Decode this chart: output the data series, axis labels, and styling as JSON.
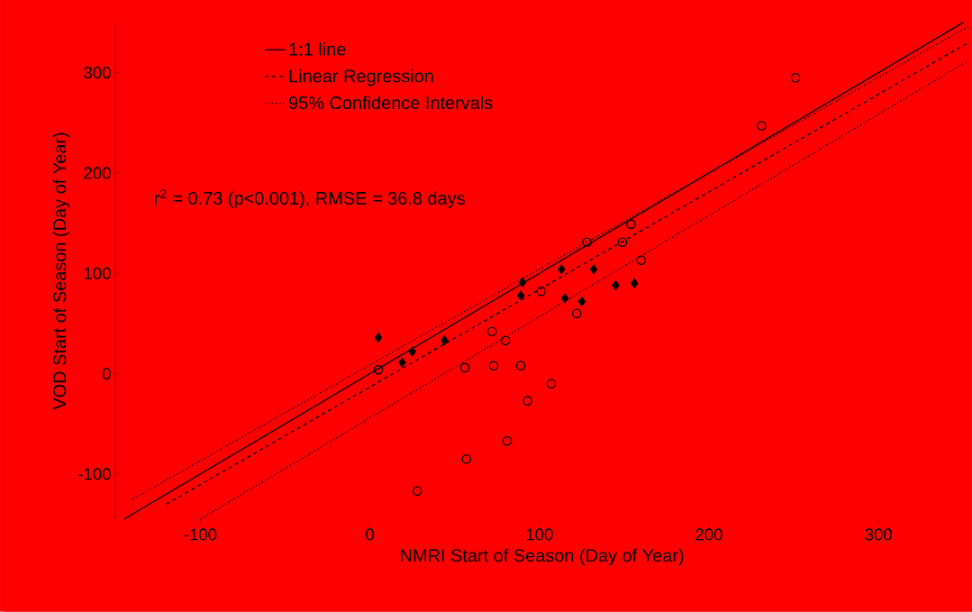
{
  "chart_data": {
    "type": "scatter",
    "xlabel": "NMRI Start of Season (Day of Year)",
    "ylabel": "VOD Start of Season (Day of Year)",
    "xlim": [
      -150,
      353
    ],
    "ylim": [
      -145,
      350
    ],
    "xticks": [
      -100,
      0,
      100,
      200,
      300
    ],
    "yticks": [
      -100,
      0,
      100,
      200,
      300
    ],
    "grid": false,
    "legend": "top left",
    "annotations": [
      "r$^{2}$ = 0.73 (p<0.001), RMSE = 36.8 days"
    ],
    "series": [
      {
        "name": "1:1 line",
        "type": "line",
        "color": "#000000",
        "marker": "none",
        "line_style": "solid",
        "x": [
          -145,
          350
        ],
        "values": [
          -145,
          350
        ]
      },
      {
        "name": "Linear Regression",
        "type": "line",
        "color": "#000000",
        "marker": "none",
        "line_style": "dashed",
        "x": [
          -120,
          353
        ],
        "values": [
          -130,
          330
        ]
      },
      {
        "name": "95% Confidence Intervals",
        "type": "line",
        "color": "#000000",
        "marker": "none",
        "line_style": "dotted",
        "x": [
          -100,
          353
        ],
        "values": [
          -145,
          312
        ]
      },
      {
        "type": "line",
        "color": "#000000",
        "marker": "none",
        "line_style": "dotted",
        "x": [
          -140,
          353
        ],
        "values": [
          -125,
          346
        ]
      },
      {
        "color": "#000000",
        "marker": "diamond",
        "x": [
          5,
          19,
          25,
          44,
          89,
          90,
          115,
          125,
          132,
          145,
          156,
          113
        ],
        "values": [
          36,
          11,
          22,
          33,
          78,
          91,
          75,
          72,
          104,
          88,
          90,
          104
        ]
      },
      {
        "color": "#000000",
        "marker": "circle",
        "x": [
          5,
          56,
          73,
          89,
          93,
          107,
          81,
          57,
          28,
          251,
          231,
          154,
          149,
          128,
          160,
          101,
          80,
          122,
          72
        ],
        "values": [
          4,
          6,
          8,
          8,
          -27,
          -10,
          -67,
          -85,
          -117,
          295,
          247,
          149,
          131,
          131,
          113,
          82,
          33,
          60,
          42
        ]
      }
    ]
  }
}
